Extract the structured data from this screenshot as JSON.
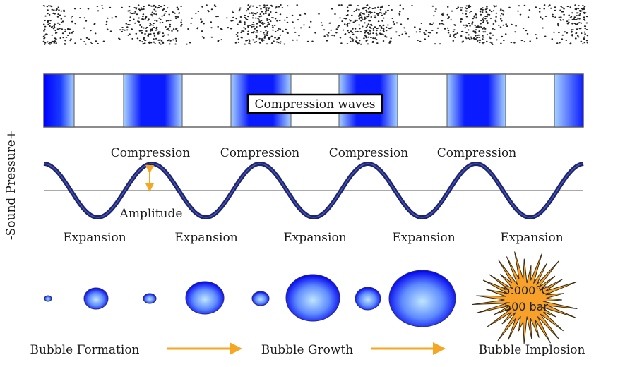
{
  "diagram": {
    "wave_box_label": "Compression waves",
    "y_axis_label": "-Sound Pressure+",
    "compression_labels": [
      "Compression",
      "Compression",
      "Compression",
      "Compression"
    ],
    "expansion_labels": [
      "Expansion",
      "Expansion",
      "Expansion",
      "Expansion",
      "Expansion"
    ],
    "amplitude_label": "Amplitude",
    "implosion_temperature": "5.000°C",
    "implosion_pressure": "500 bar",
    "stages": [
      "Bubble Formation",
      "Bubble Growth",
      "Bubble Implosion"
    ],
    "colors": {
      "compression_blue": "#0000ff",
      "wave_stroke": "#1c2470",
      "arrow_orange": "#f5a623",
      "implosion_orange": "#f7a12a"
    }
  }
}
